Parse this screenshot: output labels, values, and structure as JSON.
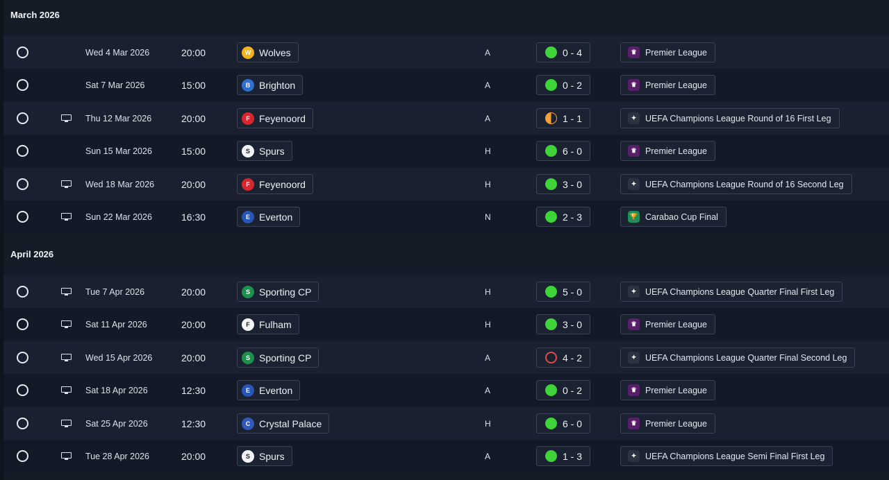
{
  "months": [
    {
      "title": "March 2026",
      "fixtures": [
        {
          "tv": false,
          "date": "Wed 4 Mar 2026",
          "time": "20:00",
          "team": "Wolves",
          "crest": "wolves-crest-icon",
          "crest_color": "#f2b21b",
          "crest_glyph": "W",
          "venue": "A",
          "result": "win",
          "score": "0 - 4",
          "competition": "Premier League",
          "comp_icon": "premier-league-icon"
        },
        {
          "tv": false,
          "date": "Sat 7 Mar 2026",
          "time": "15:00",
          "team": "Brighton",
          "crest": "brighton-crest-icon",
          "crest_color": "#2f6fd0",
          "crest_glyph": "B",
          "venue": "A",
          "result": "win",
          "score": "0 - 2",
          "competition": "Premier League",
          "comp_icon": "premier-league-icon"
        },
        {
          "tv": true,
          "date": "Thu 12 Mar 2026",
          "time": "20:00",
          "team": "Feyenoord",
          "crest": "feyenoord-crest-icon",
          "crest_color": "#d8262e",
          "crest_glyph": "F",
          "venue": "A",
          "result": "draw",
          "score": "1 - 1",
          "competition": "UEFA Champions League Round of 16  First Leg",
          "comp_icon": "champions-league-icon"
        },
        {
          "tv": false,
          "date": "Sun 15 Mar 2026",
          "time": "15:00",
          "team": "Spurs",
          "crest": "spurs-crest-icon",
          "crest_color": "#f3f4f6",
          "crest_glyph": "S",
          "venue": "H",
          "result": "win",
          "score": "6 - 0",
          "competition": "Premier League",
          "comp_icon": "premier-league-icon"
        },
        {
          "tv": true,
          "date": "Wed 18 Mar 2026",
          "time": "20:00",
          "team": "Feyenoord",
          "crest": "feyenoord-crest-icon",
          "crest_color": "#d8262e",
          "crest_glyph": "F",
          "venue": "H",
          "result": "win",
          "score": "3 - 0",
          "competition": "UEFA Champions League Round of 16  Second Leg",
          "comp_icon": "champions-league-icon"
        },
        {
          "tv": true,
          "date": "Sun 22 Mar 2026",
          "time": "16:30",
          "team": "Everton",
          "crest": "everton-crest-icon",
          "crest_color": "#2a55b8",
          "crest_glyph": "E",
          "venue": "N",
          "result": "win",
          "score": "2 - 3",
          "competition": "Carabao Cup Final",
          "comp_icon": "carabao-cup-icon"
        }
      ]
    },
    {
      "title": "April 2026",
      "fixtures": [
        {
          "tv": true,
          "date": "Tue 7 Apr 2026",
          "time": "20:00",
          "team": "Sporting CP",
          "crest": "sporting-crest-icon",
          "crest_color": "#1f8f4e",
          "crest_glyph": "S",
          "venue": "H",
          "result": "win",
          "score": "5 - 0",
          "competition": "UEFA Champions League Quarter Final First Leg",
          "comp_icon": "champions-league-icon"
        },
        {
          "tv": true,
          "date": "Sat 11 Apr 2026",
          "time": "20:00",
          "team": "Fulham",
          "crest": "fulham-crest-icon",
          "crest_color": "#f3f4f6",
          "crest_glyph": "F",
          "venue": "H",
          "result": "win",
          "score": "3 - 0",
          "competition": "Premier League",
          "comp_icon": "premier-league-icon"
        },
        {
          "tv": true,
          "date": "Wed 15 Apr 2026",
          "time": "20:00",
          "team": "Sporting CP",
          "crest": "sporting-crest-icon",
          "crest_color": "#1f8f4e",
          "crest_glyph": "S",
          "venue": "A",
          "result": "loss",
          "score": "4 - 2",
          "competition": "UEFA Champions League Quarter Final Second Leg",
          "comp_icon": "champions-league-icon"
        },
        {
          "tv": true,
          "date": "Sat 18 Apr 2026",
          "time": "12:30",
          "team": "Everton",
          "crest": "everton-crest-icon",
          "crest_color": "#2a55b8",
          "crest_glyph": "E",
          "venue": "A",
          "result": "win",
          "score": "0 - 2",
          "competition": "Premier League",
          "comp_icon": "premier-league-icon"
        },
        {
          "tv": true,
          "date": "Sat 25 Apr 2026",
          "time": "12:30",
          "team": "Crystal Palace",
          "crest": "crystal-palace-crest-icon",
          "crest_color": "#3459b8",
          "crest_glyph": "C",
          "venue": "H",
          "result": "win",
          "score": "6 - 0",
          "competition": "Premier League",
          "comp_icon": "premier-league-icon"
        },
        {
          "tv": true,
          "date": "Tue 28 Apr 2026",
          "time": "20:00",
          "team": "Spurs",
          "crest": "spurs-crest-icon",
          "crest_color": "#f3f4f6",
          "crest_glyph": "S",
          "venue": "A",
          "result": "win",
          "score": "1 - 3",
          "competition": "UEFA Champions League Semi Final First Leg",
          "comp_icon": "champions-league-icon"
        }
      ]
    }
  ],
  "colors": {
    "win": "#3fd43a",
    "draw": "#f4a03a",
    "loss": "#e24a4a",
    "premier_league": "#5a1f6b",
    "carabao_cup": "#1f8f5a",
    "champions_league": "#2b3242"
  }
}
